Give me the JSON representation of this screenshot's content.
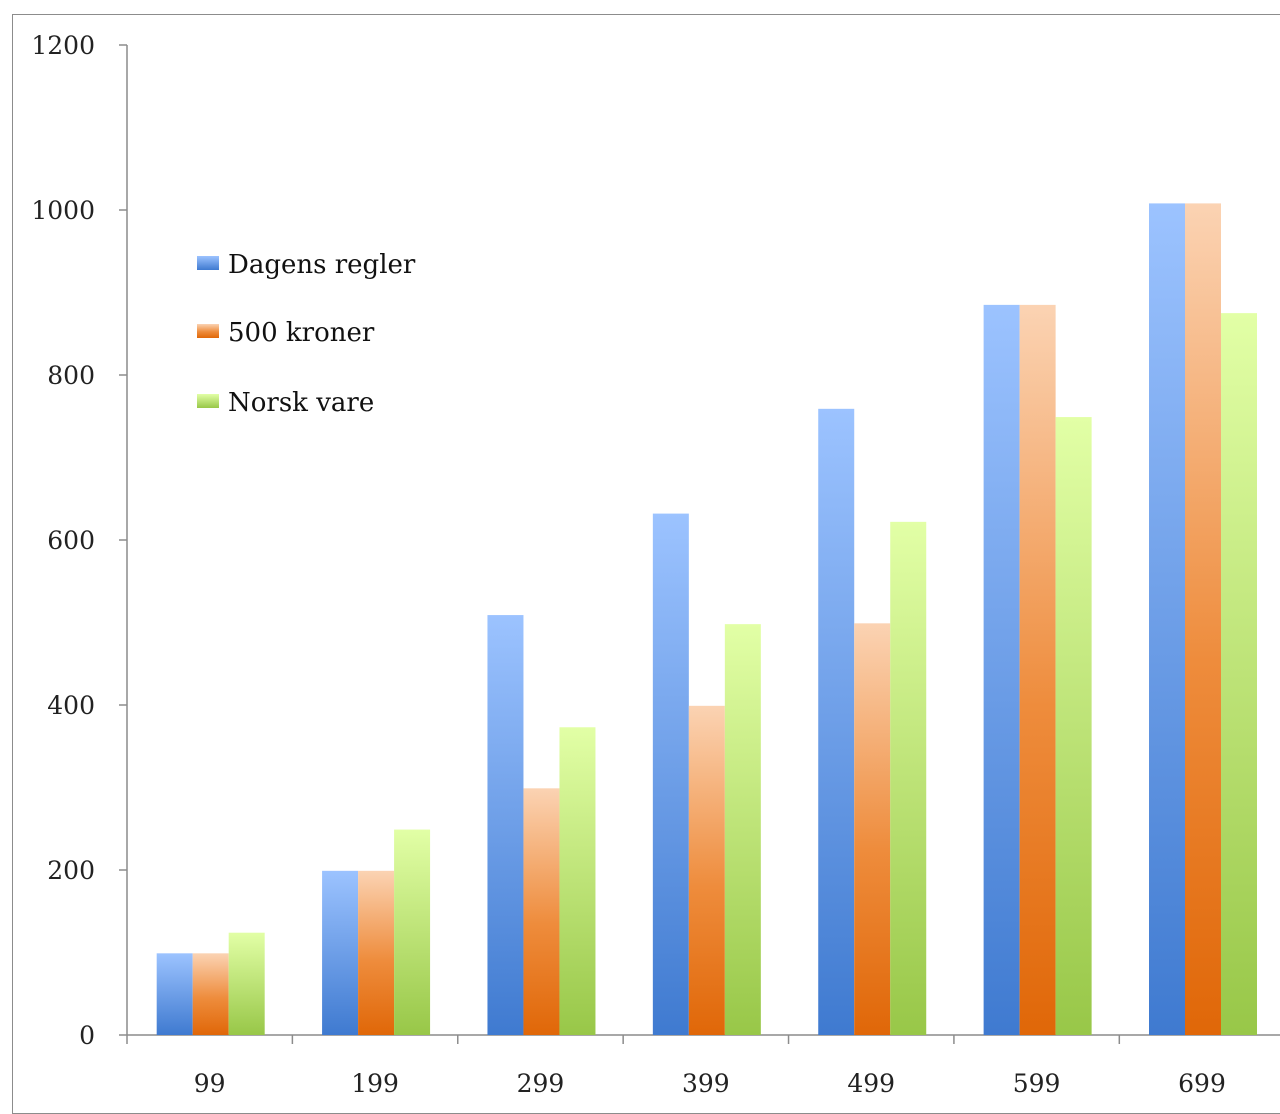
{
  "chart_data": {
    "type": "bar",
    "title": "",
    "xlabel": "",
    "ylabel": "",
    "categories": [
      "99",
      "199",
      "299",
      "399",
      "499",
      "599",
      "699"
    ],
    "series": [
      {
        "name": "Dagens regler",
        "values": [
          99,
          199,
          509,
          632,
          759,
          885,
          1008
        ],
        "color": "#4a7fd0"
      },
      {
        "name": "500 kroner",
        "values": [
          99,
          199,
          299,
          399,
          499,
          885,
          1008
        ],
        "color": "#e8700e"
      },
      {
        "name": "Norsk vare",
        "values": [
          124,
          249,
          373,
          498,
          622,
          749,
          875
        ],
        "color": "#9ccb4a"
      }
    ],
    "ylim": [
      0,
      1200
    ],
    "yticks": [
      0,
      200,
      400,
      600,
      800,
      1000,
      1200
    ],
    "grid": false,
    "legend_position": "top-left"
  }
}
